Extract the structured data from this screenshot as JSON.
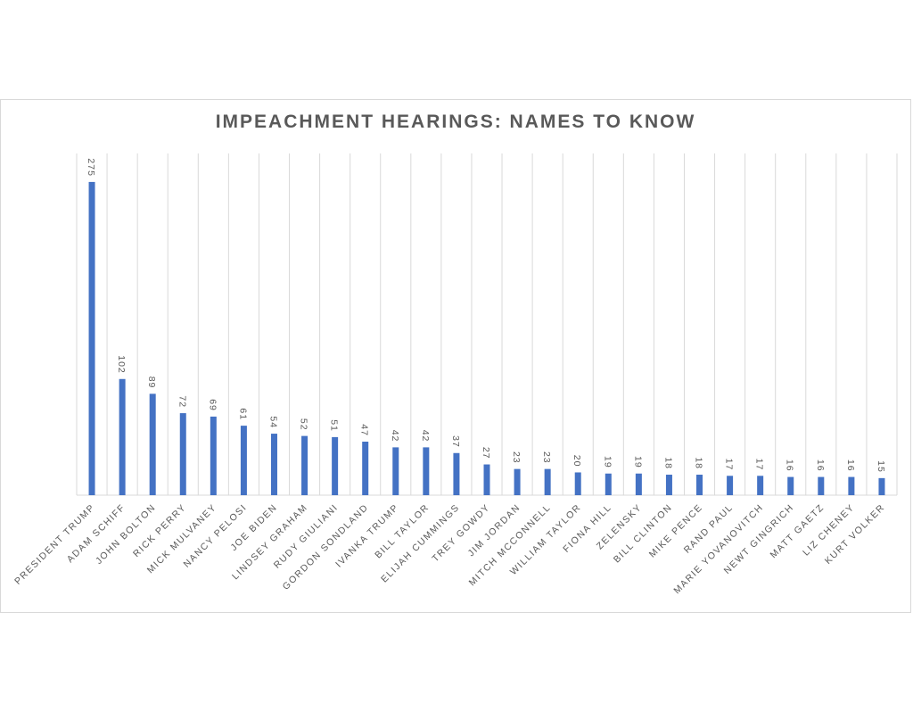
{
  "chart_data": {
    "type": "bar",
    "title": "IMPEACHMENT HEARINGS: NAMES TO KNOW",
    "categories": [
      "PRESIDENT TRUMP",
      "ADAM SCHIFF",
      "JOHN BOLTON",
      "RICK PERRY",
      "MICK MULVANEY",
      "NANCY PELOSI",
      "JOE BIDEN",
      "LINDSEY GRAHAM",
      "RUDY GIULIANI",
      "GORDON SONDLAND",
      "IVANKA TRUMP",
      "BILL TAYLOR",
      "ELIJAH CUMMINGS",
      "TREY GOWDY",
      "JIM JORDAN",
      "MITCH MCCONNELL",
      "WILLIAM TAYLOR",
      "FIONA HILL",
      "ZELENSKY",
      "BILL CLINTON",
      "MIKE PENCE",
      "RAND PAUL",
      "MARIE YOVANOVITCH",
      "NEWT GINGRICH",
      "MATT GAETZ",
      "LIZ CHENEY",
      "KURT VOLKER"
    ],
    "values": [
      275,
      102,
      89,
      72,
      69,
      61,
      54,
      52,
      51,
      47,
      42,
      42,
      37,
      27,
      23,
      23,
      20,
      19,
      19,
      18,
      18,
      17,
      17,
      16,
      16,
      16,
      15
    ],
    "data_labels": [
      "275",
      "102",
      "89",
      "72",
      "69",
      "61",
      "54",
      "52",
      "51",
      "47",
      "42",
      "42",
      "37",
      "27",
      "23",
      "23",
      "20",
      "19",
      "19",
      "18",
      "18",
      "17",
      "17",
      "16",
      "16",
      "16",
      "15"
    ],
    "xlabel": "",
    "ylabel": "",
    "ylim": [
      0,
      300
    ],
    "vertical_gridlines": true,
    "legend": "none",
    "bar_color": "#4472c4",
    "grid_color": "#d9d9d9",
    "text_color": "#595959"
  }
}
